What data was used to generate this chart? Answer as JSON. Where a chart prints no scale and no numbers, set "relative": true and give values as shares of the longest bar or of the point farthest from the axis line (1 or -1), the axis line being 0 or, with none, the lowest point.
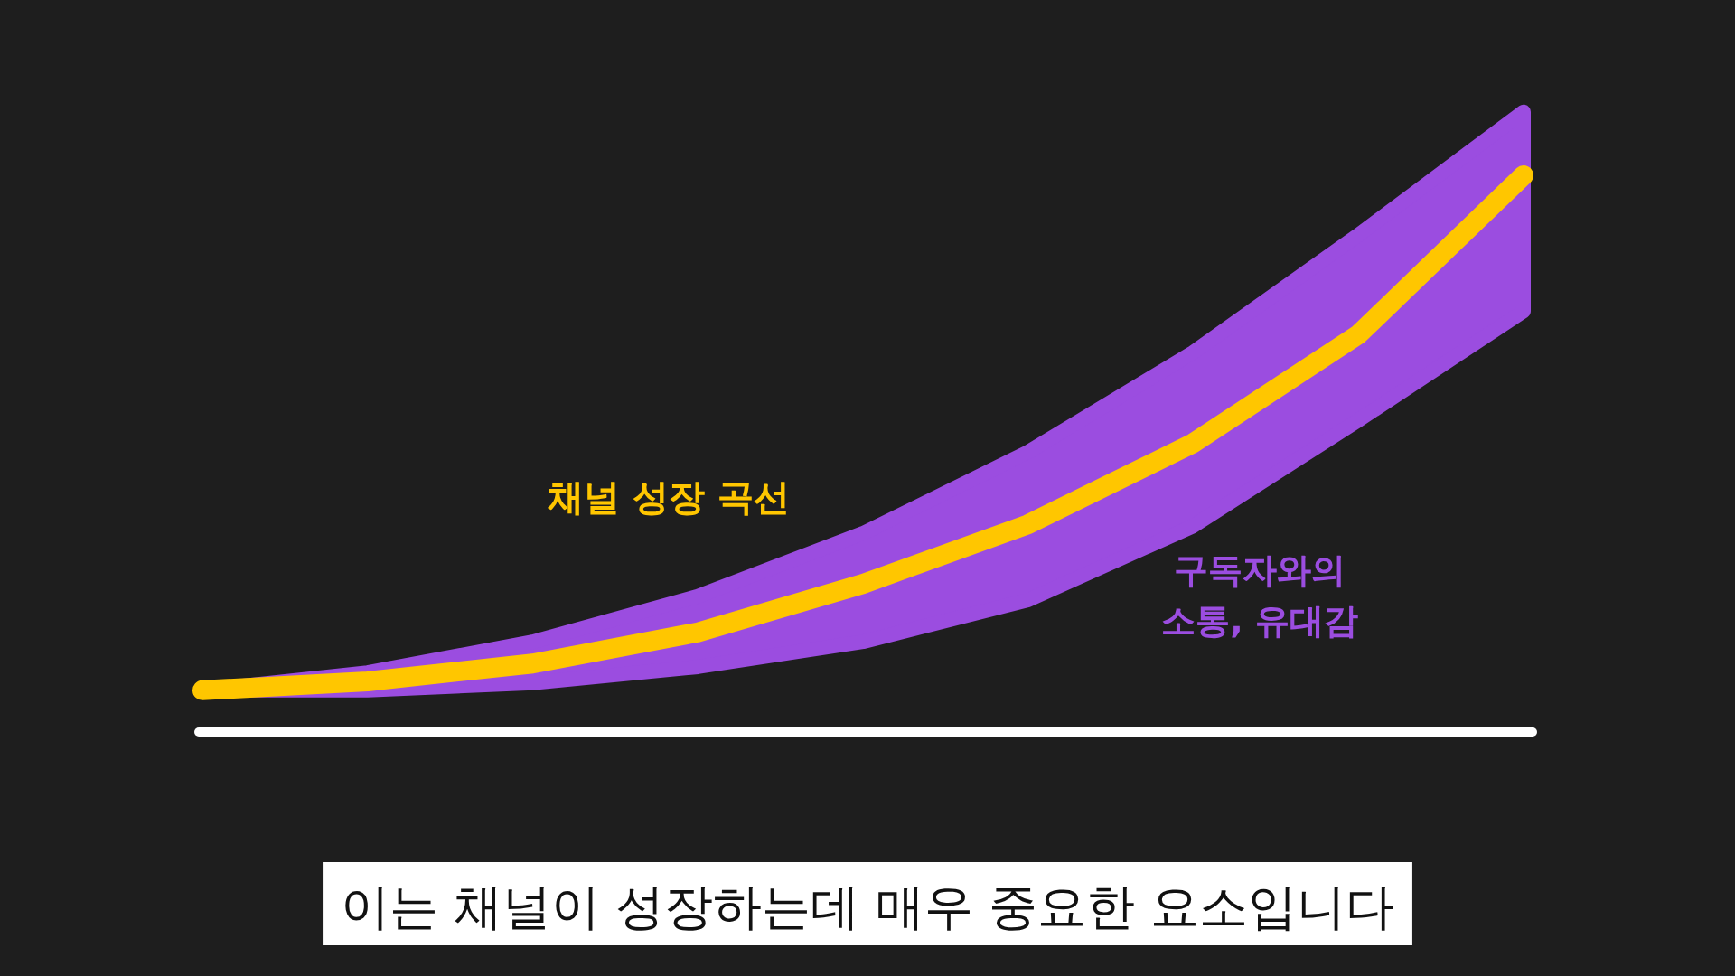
{
  "chart_data": {
    "type": "line",
    "relative": true,
    "categories": [
      null,
      null,
      null,
      null,
      null,
      null,
      null,
      null,
      null
    ],
    "series": [
      {
        "name": "채널 성장 곡선",
        "color": "#ffc600",
        "values": [
          0.075,
          0.091,
          0.123,
          0.179,
          0.266,
          0.373,
          0.519,
          0.714,
          1
        ],
        "lower": [
          0.075,
          0.075,
          0.088,
          0.117,
          0.162,
          0.237,
          0.37,
          0.56,
          0.756
        ],
        "upper": [
          0.075,
          0.107,
          0.162,
          0.244,
          0.357,
          0.503,
          0.682,
          0.893,
          1.114
        ]
      }
    ],
    "annotations": [
      "구독자와의\n소통, 유대감",
      "이는 채널이 성장하는데 매우 중요한 요소입니다"
    ]
  }
}
